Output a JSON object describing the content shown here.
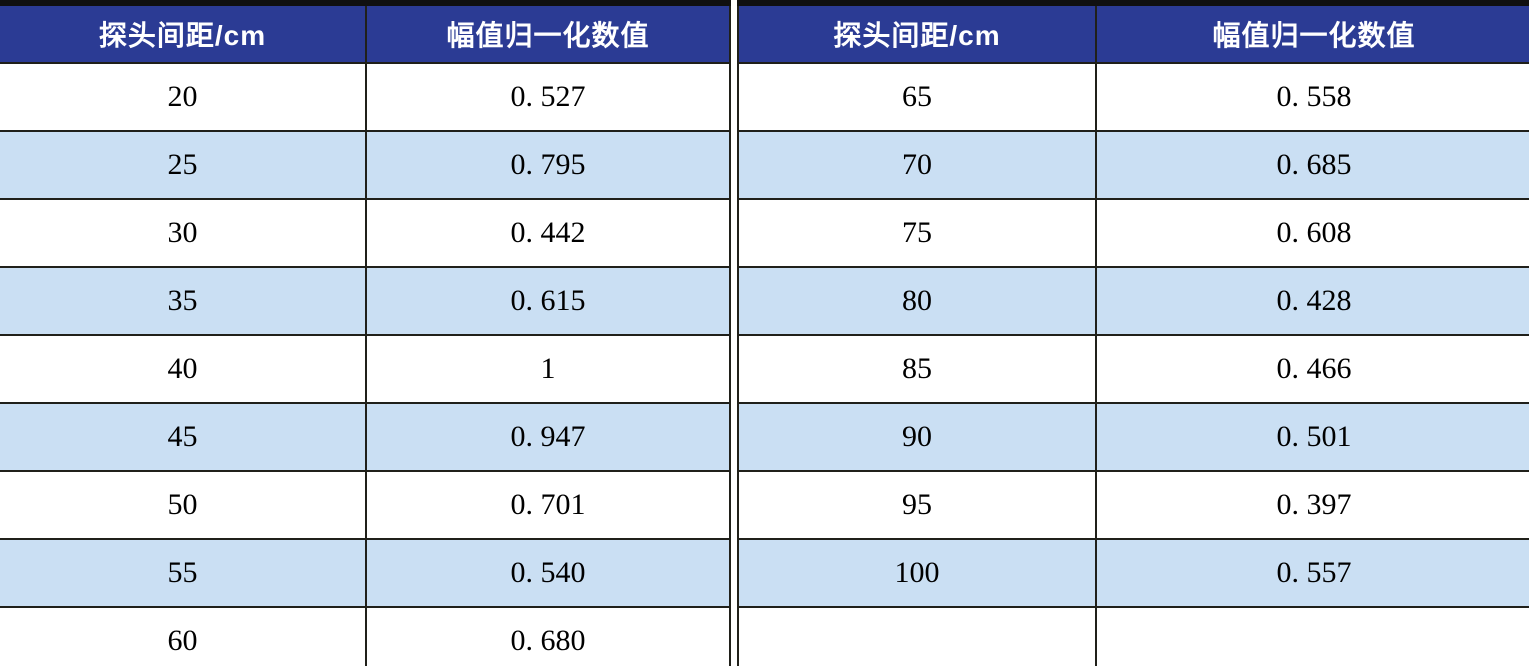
{
  "table": {
    "left": {
      "headers": [
        "探头间距/cm",
        "幅值归一化数值"
      ],
      "rows": [
        [
          "20",
          "0. 527"
        ],
        [
          "25",
          "0. 795"
        ],
        [
          "30",
          "0. 442"
        ],
        [
          "35",
          "0. 615"
        ],
        [
          "40",
          "1"
        ],
        [
          "45",
          "0. 947"
        ],
        [
          "50",
          "0. 701"
        ],
        [
          "55",
          "0. 540"
        ],
        [
          "60",
          "0. 680"
        ]
      ]
    },
    "right": {
      "headers": [
        "探头间距/cm",
        "幅值归一化数值"
      ],
      "rows": [
        [
          "65",
          "0. 558"
        ],
        [
          "70",
          "0. 685"
        ],
        [
          "75",
          "0. 608"
        ],
        [
          "80",
          "0. 428"
        ],
        [
          "85",
          "0. 466"
        ],
        [
          "90",
          "0. 501"
        ],
        [
          "95",
          "0. 397"
        ],
        [
          "100",
          "0. 557"
        ],
        [
          "",
          ""
        ]
      ]
    },
    "colors": {
      "header_bg": "#2b3b94",
      "header_text": "#ffffff",
      "row_bg": "#ffffff",
      "row_alt_bg": "#cadff3",
      "grid_line": "#20201a",
      "outer_border": "#101010"
    }
  },
  "chart_data": {
    "type": "table",
    "title": "",
    "columns": [
      "探头间距/cm",
      "幅值归一化数值"
    ],
    "data": [
      [
        20,
        0.527
      ],
      [
        25,
        0.795
      ],
      [
        30,
        0.442
      ],
      [
        35,
        0.615
      ],
      [
        40,
        1
      ],
      [
        45,
        0.947
      ],
      [
        50,
        0.701
      ],
      [
        55,
        0.54
      ],
      [
        60,
        0.68
      ],
      [
        65,
        0.558
      ],
      [
        70,
        0.685
      ],
      [
        75,
        0.608
      ],
      [
        80,
        0.428
      ],
      [
        85,
        0.466
      ],
      [
        90,
        0.501
      ],
      [
        95,
        0.397
      ],
      [
        100,
        0.557
      ]
    ],
    "layout_hints": {
      "split_into_two_side_by_side_panels": true,
      "left_panel_rows": "20-60",
      "right_panel_rows": "65-100 plus one empty row",
      "alternating_row_shading": true
    }
  }
}
